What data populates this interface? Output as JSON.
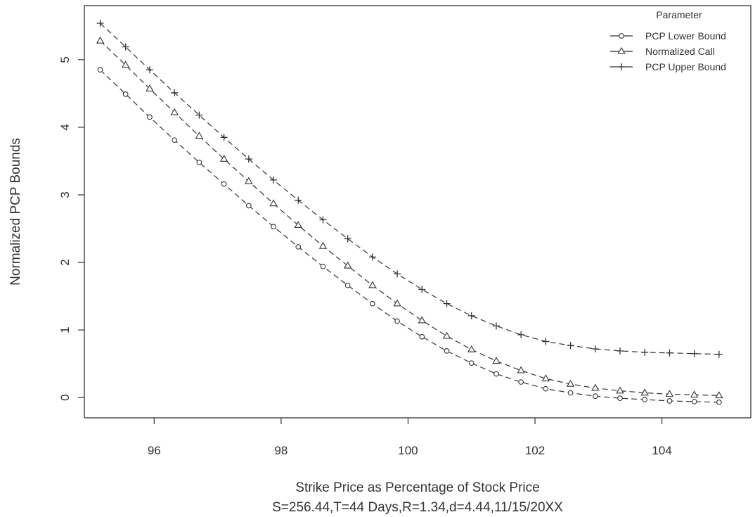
{
  "chart_data": {
    "type": "line",
    "xlabel": "Strike Price as Percentage of Stock Price",
    "subtitle": "S=256.44,T=44 Days,R=1.34,d=4.44,11/15/20XX",
    "ylabel": "Normalized PCP Bounds",
    "xlim": [
      94.9,
      105.4
    ],
    "ylim": [
      -0.3,
      5.8
    ],
    "xticks": [
      96,
      98,
      100,
      102,
      104
    ],
    "yticks": [
      0,
      1,
      2,
      3,
      4,
      5
    ],
    "x": [
      95.15,
      95.55,
      95.93,
      96.32,
      96.71,
      97.1,
      97.49,
      97.88,
      98.27,
      98.66,
      99.05,
      99.44,
      99.83,
      100.22,
      100.61,
      101.0,
      101.39,
      101.78,
      102.17,
      102.56,
      102.95,
      103.34,
      103.73,
      104.12,
      104.51,
      104.9
    ],
    "legend": {
      "title": "Parameter",
      "position": "top-right"
    },
    "series": [
      {
        "name": "PCP Lower Bound",
        "marker": "circle",
        "values": [
          4.85,
          4.49,
          4.15,
          3.81,
          3.48,
          3.16,
          2.84,
          2.53,
          2.23,
          1.94,
          1.66,
          1.39,
          1.13,
          0.9,
          0.69,
          0.51,
          0.35,
          0.23,
          0.13,
          0.07,
          0.02,
          -0.01,
          -0.03,
          -0.05,
          -0.06,
          -0.07
        ]
      },
      {
        "name": "Normalized Call",
        "marker": "triangle",
        "values": [
          5.28,
          4.92,
          4.57,
          4.22,
          3.87,
          3.53,
          3.2,
          2.87,
          2.55,
          2.24,
          1.95,
          1.66,
          1.39,
          1.14,
          0.91,
          0.71,
          0.54,
          0.4,
          0.28,
          0.2,
          0.14,
          0.1,
          0.07,
          0.05,
          0.04,
          0.03
        ]
      },
      {
        "name": "PCP Upper Bound",
        "marker": "plus",
        "values": [
          5.54,
          5.19,
          4.85,
          4.51,
          4.18,
          3.85,
          3.53,
          3.22,
          2.92,
          2.63,
          2.35,
          2.08,
          1.83,
          1.6,
          1.39,
          1.21,
          1.06,
          0.93,
          0.83,
          0.77,
          0.72,
          0.69,
          0.67,
          0.66,
          0.65,
          0.64
        ]
      }
    ],
    "colors": {
      "line": "#333333",
      "frame": "#333333",
      "background": "#ffffff"
    },
    "grid": false
  }
}
